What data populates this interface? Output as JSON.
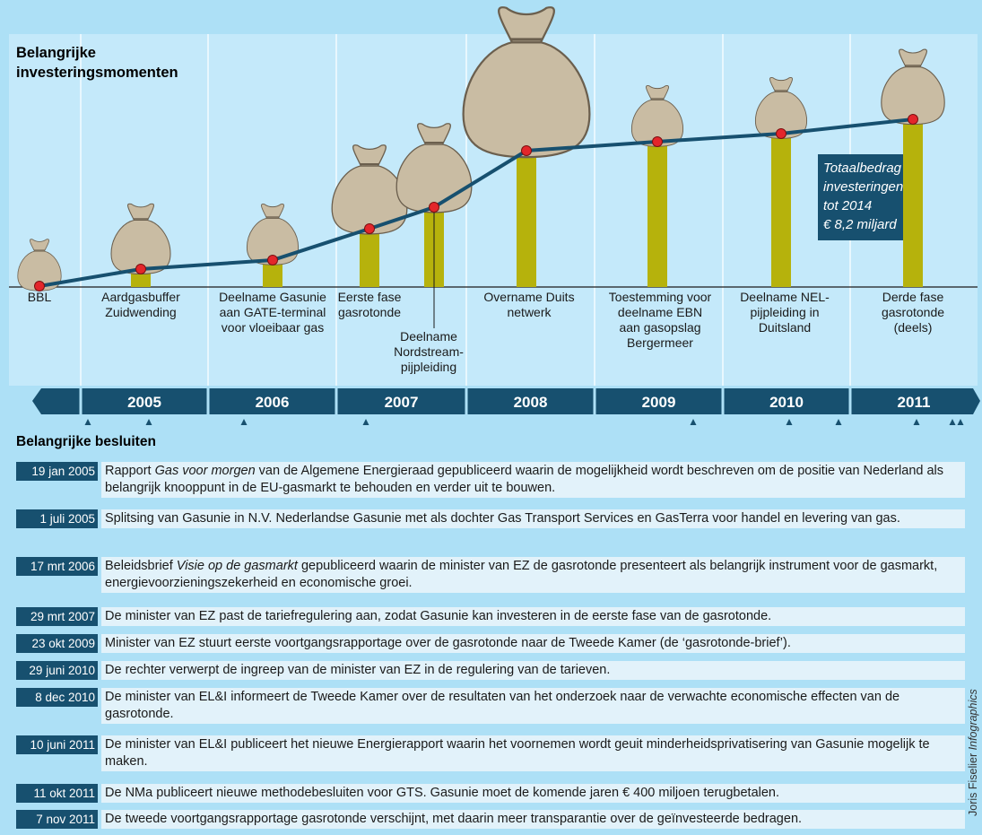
{
  "header": {
    "title": [
      "Belangrijke",
      "investeringsmomenten"
    ]
  },
  "events": [
    {
      "label": [
        "BBL"
      ]
    },
    {
      "label": [
        "Aardgasbuffer",
        "Zuidwending"
      ]
    },
    {
      "label": [
        "Deelname Gasunie",
        "aan GATE-terminal",
        "voor vloeibaar gas"
      ]
    },
    {
      "label": [
        "Eerste fase",
        "gasrotonde"
      ]
    },
    {
      "label": [
        "Deelname",
        "Nordstream-",
        "pijpleiding"
      ]
    },
    {
      "label": [
        "Overname Duits",
        "netwerk"
      ]
    },
    {
      "label": [
        "Toestemming voor",
        "deelname EBN",
        "aan gasopslag",
        "Bergermeer"
      ]
    },
    {
      "label": [
        "Deelname NEL-",
        "pijpleiding in",
        "Duitsland"
      ]
    },
    {
      "label": [
        "Derde fase",
        "gasrotonde",
        "(deels)"
      ]
    }
  ],
  "annotation": [
    "Totaalbedrag",
    "investeringen",
    "tot 2014",
    "€ 8,2 miljard"
  ],
  "years": [
    "2005",
    "2006",
    "2007",
    "2008",
    "2009",
    "2010",
    "2011"
  ],
  "decisions_title": "Belangrijke besluiten",
  "decisions": [
    {
      "date": "19 jan 2005",
      "pre": "Rapport ",
      "em": "Gas voor morgen",
      "post": " van de Algemene Energieraad gepubliceerd waarin de mogelijkheid wordt beschreven om de positie van Nederland als belangrijk knooppunt in de EU-gasmarkt te behouden en verder uit te bouwen."
    },
    {
      "date": "1 juli 2005",
      "pre": "Splitsing van Gasunie in N.V. Nederlandse Gasunie met als dochter Gas Transport Services en GasTerra voor handel en levering van gas."
    },
    {
      "date": "17 mrt 2006",
      "pre": "Beleidsbrief ",
      "em": "Visie op de gasmarkt",
      "post": " gepubliceerd waarin de minister van EZ de gasrotonde presenteert als belangrijk instrument voor de gasmarkt, energievoorzieningszekerheid en economische groei."
    },
    {
      "date": "29 mrt 2007",
      "pre": "De minister van EZ past de tariefregulering aan, zodat Gasunie kan investeren in de eerste fase van de gasrotonde."
    },
    {
      "date": "23 okt 2009",
      "pre": "Minister van EZ stuurt eerste voortgangsrapportage over de gasrotonde naar de Tweede Kamer (de ‘gasrotonde-brief’)."
    },
    {
      "date": "29 juni 2010",
      "pre": "De rechter verwerpt de ingreep van de minister van EZ in de regulering van de tarieven."
    },
    {
      "date": "8 dec 2010",
      "pre": "De minister van EL&I informeert de Tweede Kamer over de resultaten van het onderzoek naar de verwachte economische effecten van de gasrotonde."
    },
    {
      "date": "10 juni 2011",
      "pre": "De minister van EL&I publiceert het nieuwe Energierapport waarin het voornemen wordt geuit minderheidsprivatisering van Gasunie mogelijk te maken."
    },
    {
      "date": "11 okt 2011",
      "pre": "De NMa publiceert nieuwe methodebesluiten voor GTS. Gasunie moet de komende jaren € 400 miljoen terugbetalen."
    },
    {
      "date": "7 nov 2011",
      "pre": "De tweede voortgangsrapportage gasrotonde verschijnt, met daarin meer transparantie over de geïnvesteerde bedragen."
    }
  ],
  "credit": {
    "name": "Joris Fiselier",
    "em": "Infographics"
  }
}
